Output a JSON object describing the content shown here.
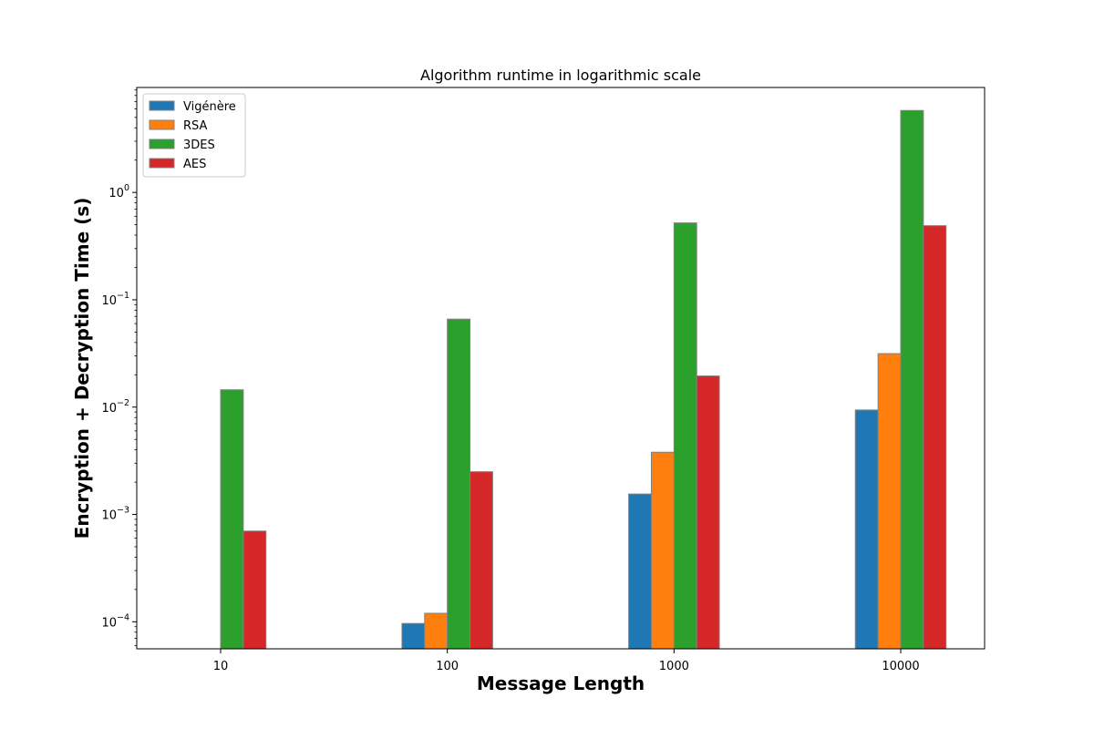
{
  "chart_data": {
    "type": "bar",
    "title": "Algorithm runtime in logarithmic scale",
    "xlabel": "Message Length",
    "ylabel": "Encryption + Decryption Time (s)",
    "yscale": "log",
    "ylim": [
      5.6e-05,
      9.5
    ],
    "yticks": [
      {
        "value": 0.0001,
        "base": "10",
        "exp": "−4"
      },
      {
        "value": 0.001,
        "base": "10",
        "exp": "−3"
      },
      {
        "value": 0.01,
        "base": "10",
        "exp": "−2"
      },
      {
        "value": 0.1,
        "base": "10",
        "exp": "−1"
      },
      {
        "value": 1,
        "base": "10",
        "exp": "0"
      }
    ],
    "categories": [
      "10",
      "100",
      "1000",
      "10000"
    ],
    "legend_position": "upper-left",
    "grid": false,
    "series": [
      {
        "name": "Vigénère",
        "color": "#1f77b4",
        "values": [
          null,
          9.65e-05,
          0.00155,
          0.0094
        ]
      },
      {
        "name": "RSA",
        "color": "#ff7f0e",
        "values": [
          null,
          0.00012,
          0.0038,
          0.0315
        ]
      },
      {
        "name": "3DES",
        "color": "#2ca02c",
        "values": [
          0.0145,
          0.066,
          0.52,
          5.8
        ]
      },
      {
        "name": "AES",
        "color": "#d62728",
        "values": [
          0.0007,
          0.0025,
          0.0195,
          0.49
        ]
      }
    ]
  }
}
